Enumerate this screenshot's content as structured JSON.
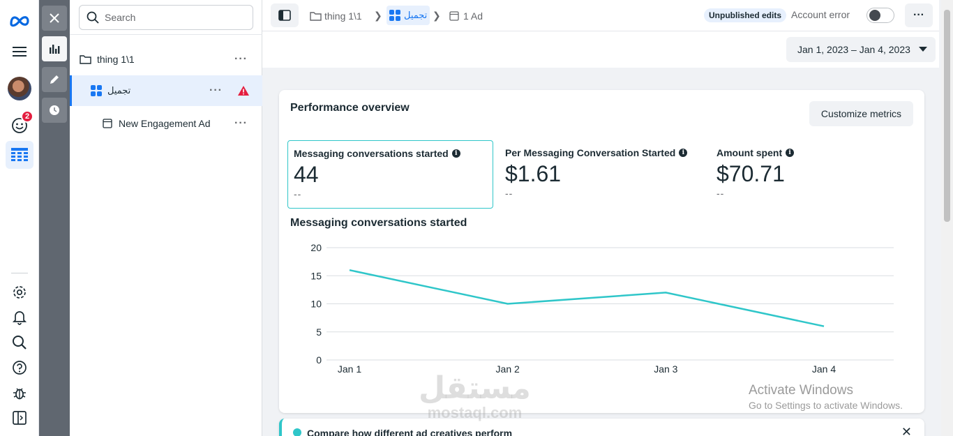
{
  "rail": {
    "logo_icon": "meta-logo-icon",
    "notifications_badge": "2"
  },
  "tree": {
    "search_placeholder": "Search",
    "campaign": "thing 1\\1",
    "adset": "تجميل",
    "ad": "New Engagement Ad"
  },
  "topbar": {
    "crumb_campaign": "thing 1\\1",
    "crumb_adset": "تجميل",
    "crumb_ads": "1 Ad",
    "unpublished": "Unpublished edits",
    "account_error": "Account error",
    "more": "···"
  },
  "subhead": {
    "date_range": "Jan 1, 2023 – Jan 4, 2023"
  },
  "card": {
    "title": "Performance overview",
    "customize_label": "Customize metrics",
    "metrics": [
      {
        "label": "Messaging conversations started",
        "value": "44",
        "compare": "--"
      },
      {
        "label": "Per Messaging Conversation Started",
        "value": "$1.61",
        "compare": "--"
      },
      {
        "label": "Amount spent",
        "value": "$70.71",
        "compare": "--"
      }
    ],
    "chart_title": "Messaging conversations started"
  },
  "chart_data": {
    "type": "line",
    "title": "Messaging conversations started",
    "categories": [
      "Jan 1",
      "Jan 2",
      "Jan 3",
      "Jan 4"
    ],
    "series": [
      {
        "values": [
          16,
          10,
          12,
          6
        ]
      }
    ],
    "yticks": [
      0,
      5,
      10,
      15,
      20
    ],
    "ylim": [
      0,
      20
    ],
    "grid": true,
    "color": "#2fc6c9"
  },
  "banner": {
    "text": "Compare how different ad creatives perform"
  },
  "watermarks": {
    "activate_title": "Activate Windows",
    "activate_sub": "Go to Settings to activate Windows.",
    "mostaql_ar": "مستقل",
    "mostaql_en": "mostaql.com"
  },
  "colors": {
    "accent": "#1877f2",
    "teal": "#2fc6c9",
    "modebar": "#606770"
  }
}
